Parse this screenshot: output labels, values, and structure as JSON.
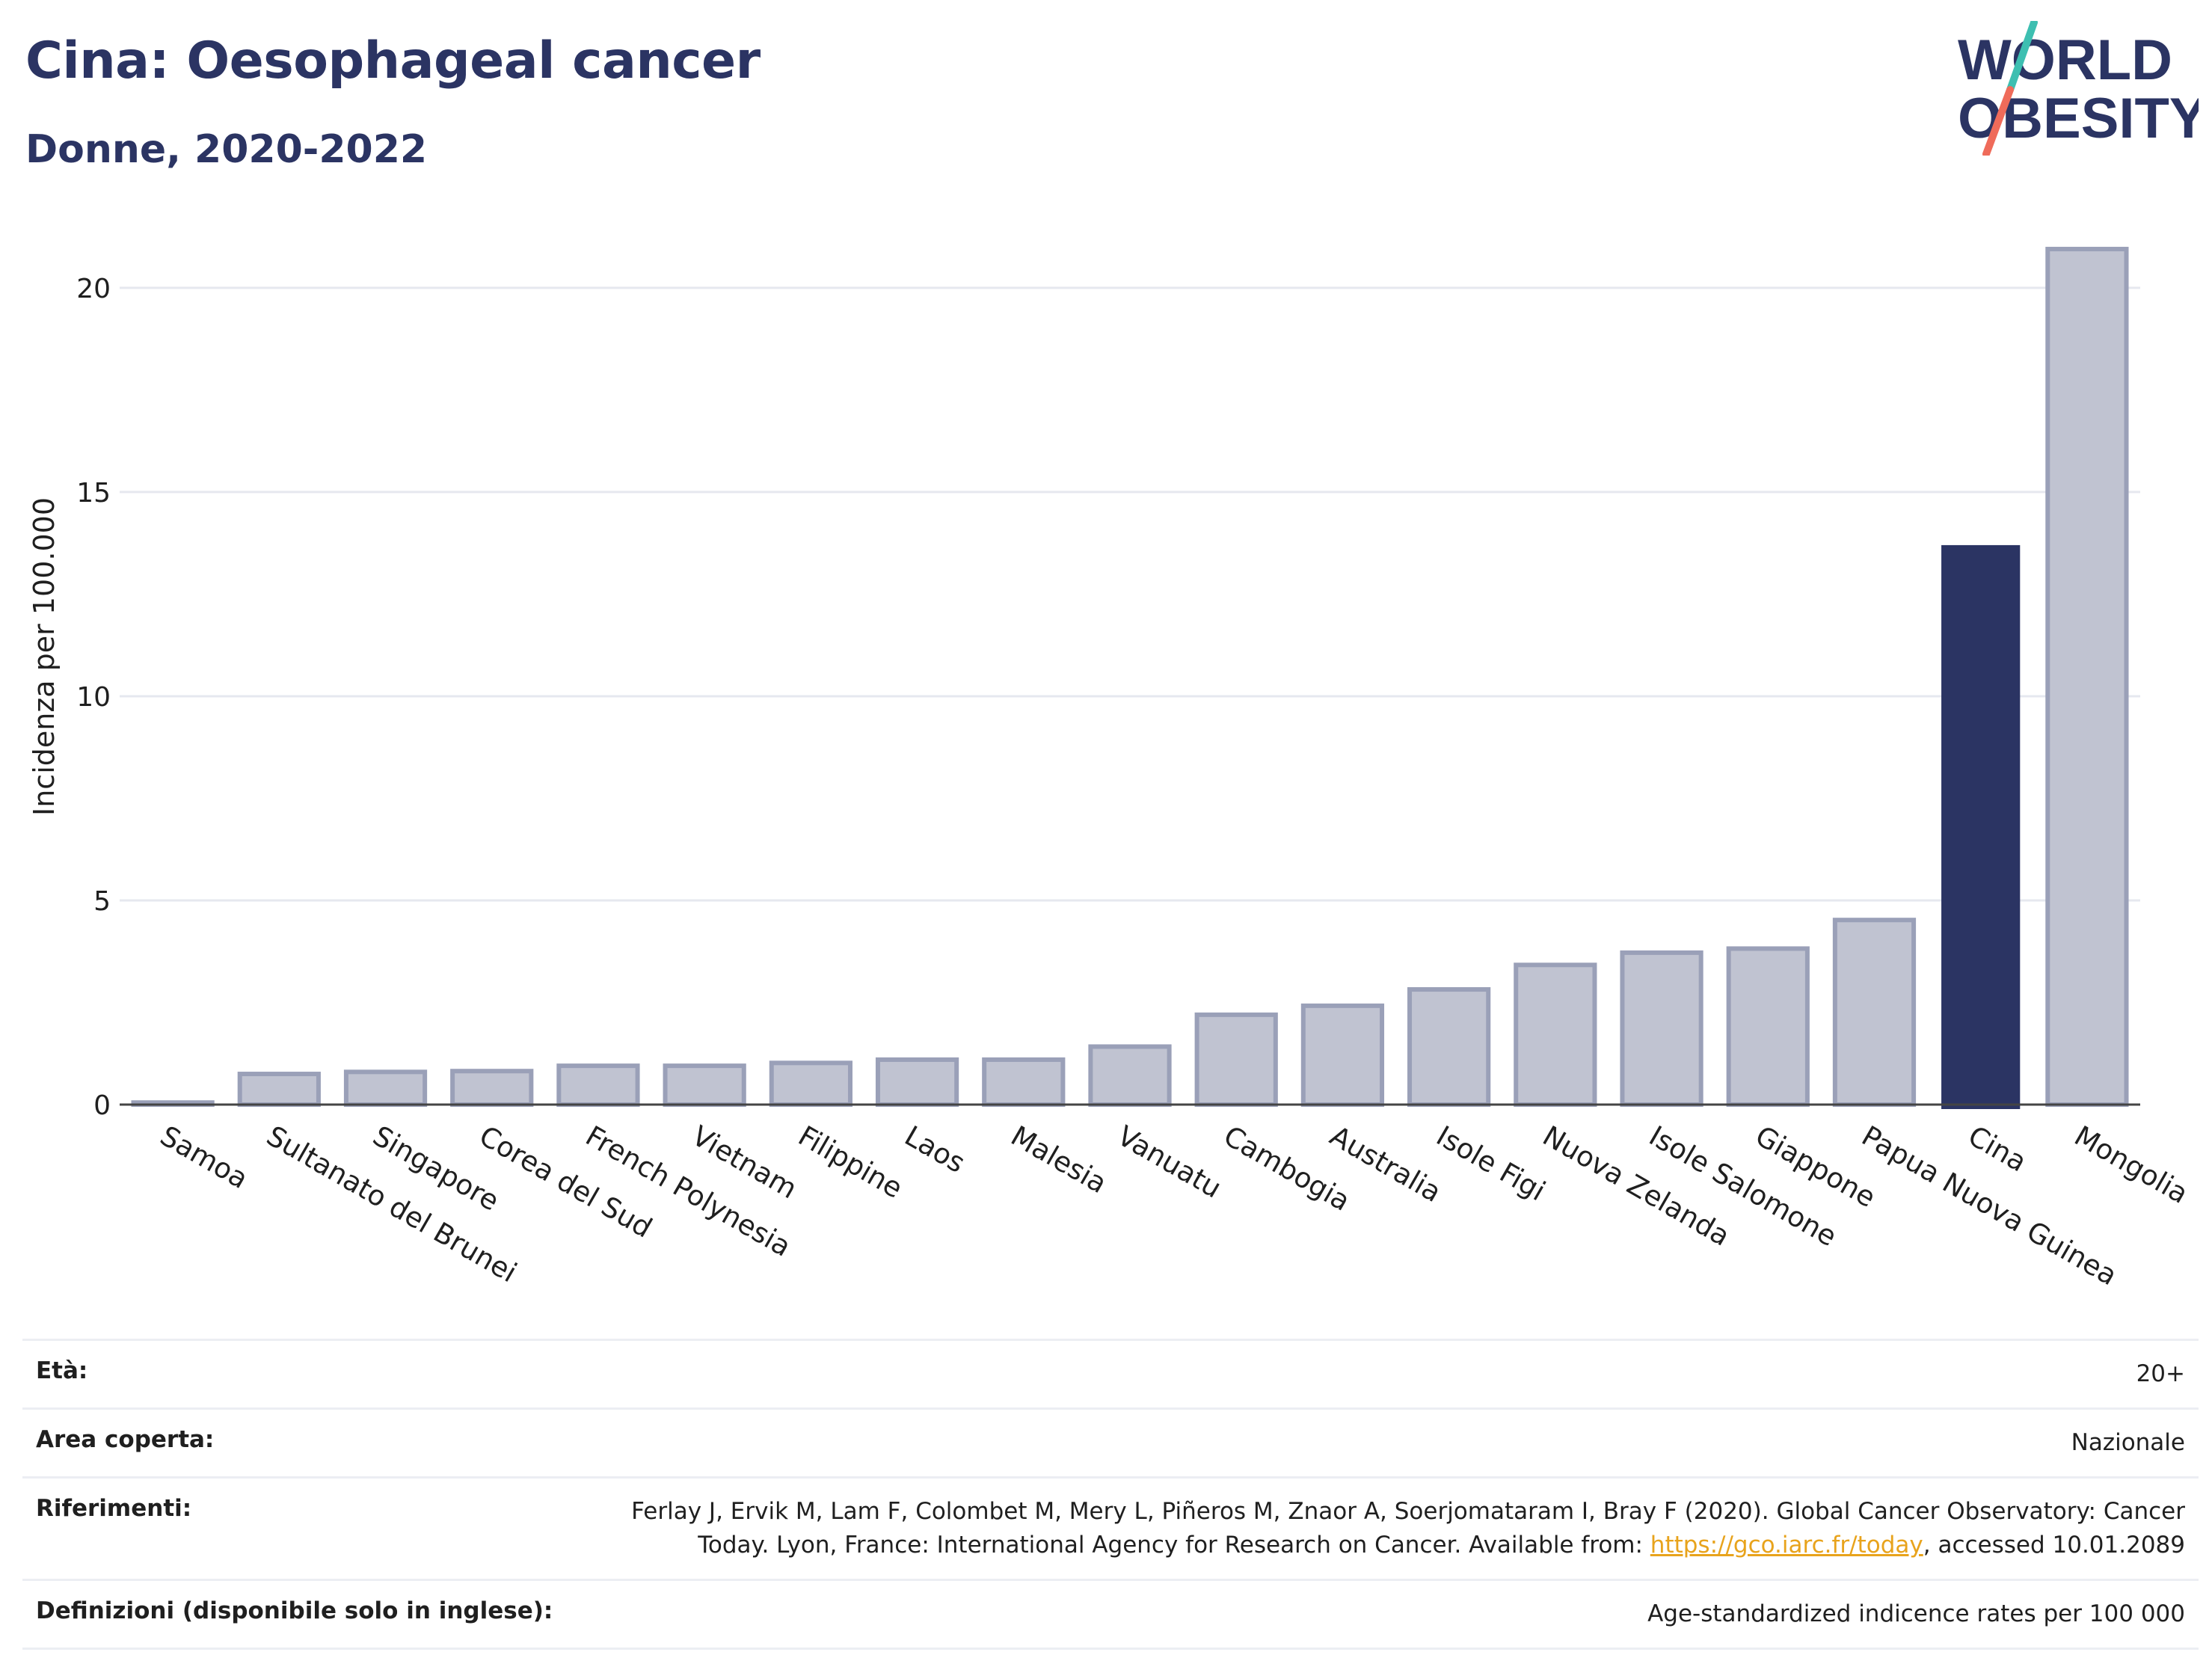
{
  "header": {
    "title": "Cina: Oesophageal cancer",
    "subtitle": "Donne, 2020-2022",
    "logo_line1": "WORLD",
    "logo_line2": "OBESITY"
  },
  "colors": {
    "highlight": "#2b3463",
    "bar_fill": "#c0c3d1",
    "bar_stroke": "#9aa0b8",
    "grid": "#e6e8ef",
    "logo_text": "#2b3463",
    "logo_teal": "#3dbfb1",
    "logo_coral": "#ef6b5a"
  },
  "chart_data": {
    "type": "bar",
    "title": "Cina: Oesophageal cancer",
    "subtitle": "Donne, 2020-2022",
    "xlabel": "",
    "ylabel": "Incidenza per 100.000",
    "ylim": [
      0,
      21.5
    ],
    "yticks": [
      0,
      5,
      10,
      15,
      20
    ],
    "grid": true,
    "highlight_category": "Cina",
    "categories": [
      "Samoa",
      "Sultanato del Brunei",
      "Singapore",
      "Corea del Sud",
      "French Polynesia",
      "Vietnam",
      "Filippine",
      "Laos",
      "Malesia",
      "Vanuatu",
      "Cambogia",
      "Australia",
      "Isole Figi",
      "Nuova Zelanda",
      "Isole Salomone",
      "Giappone",
      "Papua Nuova Guinea",
      "Cina",
      "Mongolia"
    ],
    "values": [
      0.05,
      0.75,
      0.8,
      0.82,
      0.95,
      0.95,
      1.02,
      1.1,
      1.1,
      1.42,
      2.2,
      2.42,
      2.82,
      3.42,
      3.72,
      3.82,
      4.52,
      13.7,
      20.95
    ]
  },
  "footer": {
    "rows": [
      {
        "label": "Età:",
        "value": "20+"
      },
      {
        "label": "Area coperta:",
        "value": "Nazionale"
      },
      {
        "label": "Riferimenti:",
        "value_pre": "Ferlay J, Ervik M, Lam F, Colombet M, Mery L, Piñeros M, Znaor A, Soerjomataram I, Bray F (2020). Global Cancer Observatory: Cancer Today. Lyon, France: International Agency for Research on Cancer. Available from: ",
        "link": "https://gco.iarc.fr/today",
        "value_post": ", accessed 10.01.2089"
      },
      {
        "label": "Definizioni (disponibile solo in inglese):",
        "value": "Age-standardized indicence rates per 100 000"
      }
    ]
  }
}
